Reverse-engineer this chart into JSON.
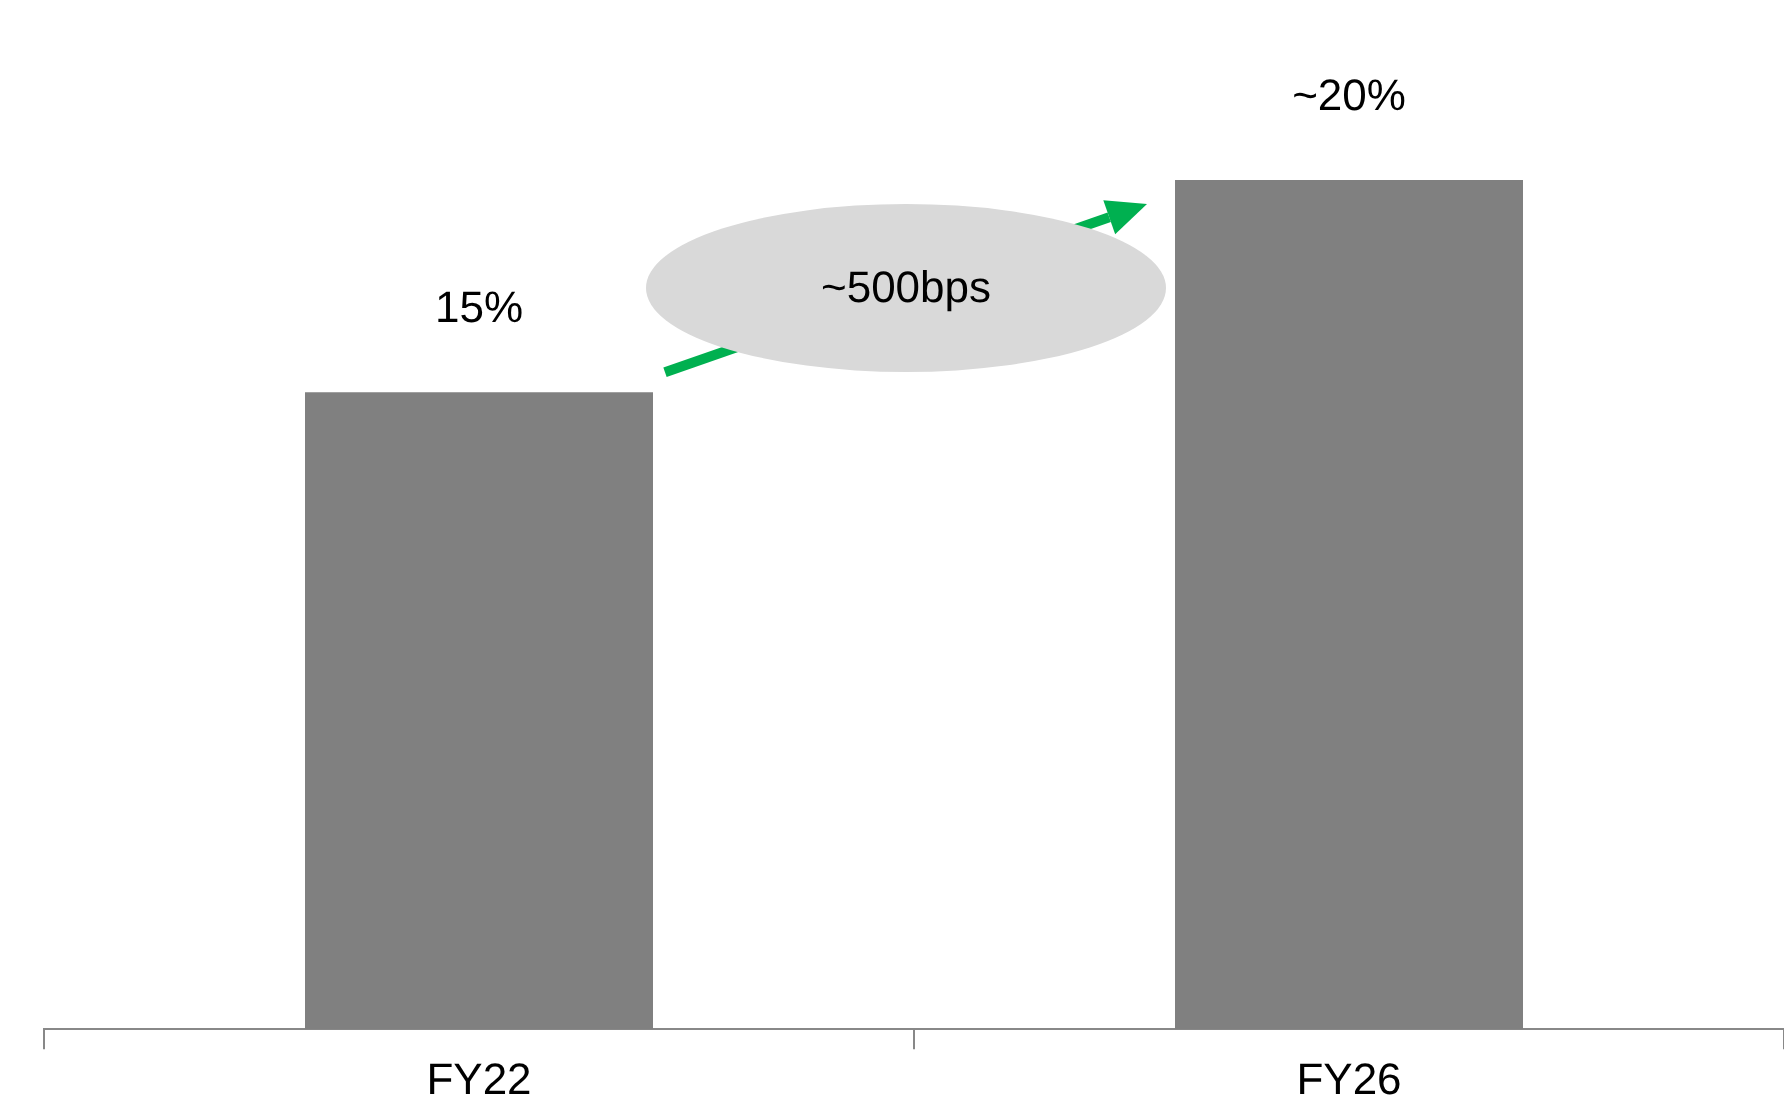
{
  "chart_data": {
    "type": "bar",
    "categories": [
      "FY22",
      "FY26"
    ],
    "values": [
      15,
      20
    ],
    "color": "#808080",
    "value_labels": [
      "15%",
      "~20%"
    ],
    "annotations": [
      "~500bps"
    ],
    "grid": false,
    "legend": false,
    "tick_labels": "x"
  }
}
